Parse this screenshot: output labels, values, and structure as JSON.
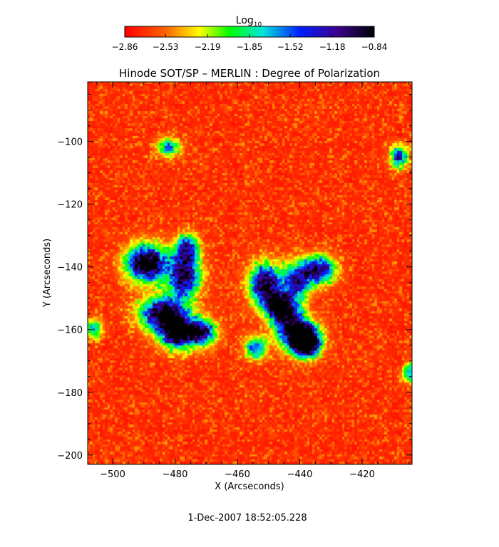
{
  "chart_data": {
    "type": "heatmap",
    "title": "Hinode SOT/SP – MERLIN : Degree of Polarization",
    "xlabel": "X (Arcseconds)",
    "ylabel": "Y (Arcseconds)",
    "xlim": [
      -508,
      -404
    ],
    "ylim": [
      -203,
      -81
    ],
    "x_ticks": [
      -500,
      -480,
      -460,
      -440,
      -420
    ],
    "x_tick_labels": [
      "−500",
      "−480",
      "−460",
      "−440",
      "−420"
    ],
    "y_ticks": [
      -100,
      -120,
      -140,
      -160,
      -180,
      -200
    ],
    "y_tick_labels": [
      "−100",
      "−120",
      "−140",
      "−160",
      "−180",
      "−200"
    ],
    "colorbar": {
      "label_base": "Log",
      "label_sub": "10",
      "min": -2.86,
      "max": -0.84,
      "ticks": [
        -2.86,
        -2.53,
        -2.19,
        -1.85,
        -1.52,
        -1.18,
        -0.84
      ],
      "tick_labels": [
        "−2.86",
        "−2.53",
        "−2.19",
        "−1.85",
        "−1.52",
        "−1.18",
        "−0.84"
      ],
      "colors": [
        "#ff0000",
        "#ffff00",
        "#00ff00",
        "#00e5e5",
        "#0000ff",
        "#2a005a",
        "#000000"
      ]
    },
    "hotspots": [
      {
        "x": -489,
        "y": -139,
        "sx": 4.5,
        "sy": 4.0,
        "amp": 1.6
      },
      {
        "x": -477,
        "y": -143,
        "sx": 3.5,
        "sy": 5.0,
        "amp": 1.3
      },
      {
        "x": -484,
        "y": -155,
        "sx": 5.0,
        "sy": 3.5,
        "amp": 1.4
      },
      {
        "x": -479,
        "y": -161,
        "sx": 4.0,
        "sy": 3.5,
        "amp": 1.6
      },
      {
        "x": -471,
        "y": -161,
        "sx": 3.0,
        "sy": 3.0,
        "amp": 1.1
      },
      {
        "x": -476,
        "y": -134,
        "sx": 2.5,
        "sy": 3.0,
        "amp": 1.0
      },
      {
        "x": -451,
        "y": -146,
        "sx": 3.5,
        "sy": 4.5,
        "amp": 1.4
      },
      {
        "x": -446,
        "y": -153,
        "sx": 3.0,
        "sy": 3.0,
        "amp": 1.6
      },
      {
        "x": -438,
        "y": -164,
        "sx": 3.0,
        "sy": 3.0,
        "amp": 2.3
      },
      {
        "x": -442,
        "y": -160,
        "sx": 4.0,
        "sy": 4.0,
        "amp": 1.3
      },
      {
        "x": -434,
        "y": -141,
        "sx": 3.5,
        "sy": 3.0,
        "amp": 1.3
      },
      {
        "x": -441,
        "y": -145,
        "sx": 3.0,
        "sy": 4.0,
        "amp": 1.1
      },
      {
        "x": -454,
        "y": -166,
        "sx": 2.5,
        "sy": 2.5,
        "amp": 0.9
      },
      {
        "x": -482,
        "y": -102,
        "sx": 2.5,
        "sy": 2.0,
        "amp": 0.8
      },
      {
        "x": -408,
        "y": -105,
        "sx": 2.0,
        "sy": 2.5,
        "amp": 1.0
      },
      {
        "x": -506,
        "y": -160,
        "sx": 2.0,
        "sy": 2.0,
        "amp": 0.8
      },
      {
        "x": -405,
        "y": -174,
        "sx": 1.5,
        "sy": 2.0,
        "amp": 0.8
      }
    ]
  },
  "footer": {
    "timestamp": "1-Dec-2007 18:52:05.228"
  }
}
